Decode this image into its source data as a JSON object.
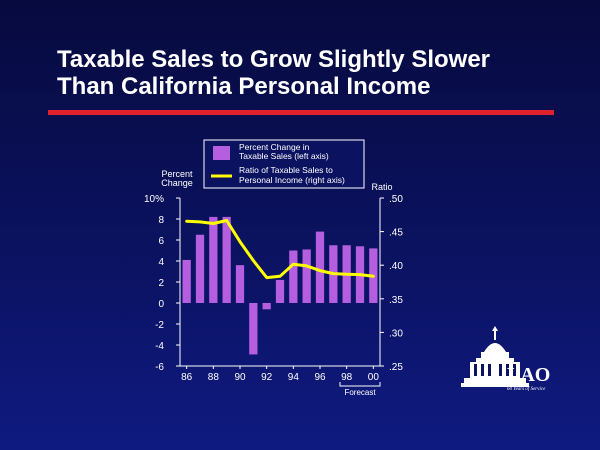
{
  "slide": {
    "title_line1": "Taxable Sales to Grow Slightly Slower",
    "title_line2": "Than California Personal Income"
  },
  "logo": {
    "text": "LAO",
    "subtitle": "60 Years of Service"
  },
  "colors": {
    "bar": "#b55fe0",
    "line": "#ffff00",
    "axis": "#ffffff",
    "title_rule": "#e0202a",
    "legend_bg": "#0b1260"
  },
  "chart_data": {
    "type": "bar",
    "title": "",
    "left_axis": {
      "label_line1": "Percent",
      "label_line2": "Change",
      "range": [
        -6,
        10
      ],
      "ticks": [
        -6,
        -4,
        -2,
        0,
        2,
        4,
        6,
        8,
        10
      ],
      "tick_labels": [
        "-6",
        "-4",
        "-2",
        "0",
        "2",
        "4",
        "6",
        "8",
        "10%"
      ]
    },
    "right_axis": {
      "label": "Ratio",
      "range": [
        0.25,
        0.5
      ],
      "ticks": [
        0.25,
        0.3,
        0.35,
        0.4,
        0.45,
        0.5
      ],
      "tick_labels": [
        ".25",
        ".30",
        ".35",
        ".40",
        ".45",
        ".50"
      ]
    },
    "x_axis": {
      "years": [
        86,
        87,
        88,
        89,
        90,
        91,
        92,
        93,
        94,
        95,
        96,
        97,
        98,
        99,
        100
      ],
      "tick_labels": [
        "86",
        "88",
        "90",
        "92",
        "94",
        "96",
        "98",
        "00"
      ],
      "tick_years": [
        86,
        88,
        90,
        92,
        94,
        96,
        98,
        100
      ],
      "forecast_label": "Forecast",
      "forecast_years": [
        98,
        100
      ]
    },
    "legend": {
      "bar_label_line1": "Percent Change in",
      "bar_label_line2": "Taxable Sales (left axis)",
      "line_label_line1": "Ratio of Taxable Sales to",
      "line_label_line2": "Personal Income (right axis)",
      "placement": "top"
    },
    "series": [
      {
        "kind": "bar",
        "axis": "left",
        "values": [
          4.1,
          6.5,
          8.2,
          8.2,
          3.6,
          -4.9,
          -0.6,
          2.2,
          5.0,
          5.1,
          6.8,
          5.5,
          5.5,
          5.4,
          5.2
        ]
      },
      {
        "kind": "line",
        "axis": "right",
        "values": [
          0.4655,
          0.4645,
          0.462,
          0.4665,
          0.435,
          0.407,
          0.3815,
          0.3835,
          0.4015,
          0.399,
          0.392,
          0.3875,
          0.3865,
          0.386,
          0.3835
        ]
      }
    ]
  }
}
